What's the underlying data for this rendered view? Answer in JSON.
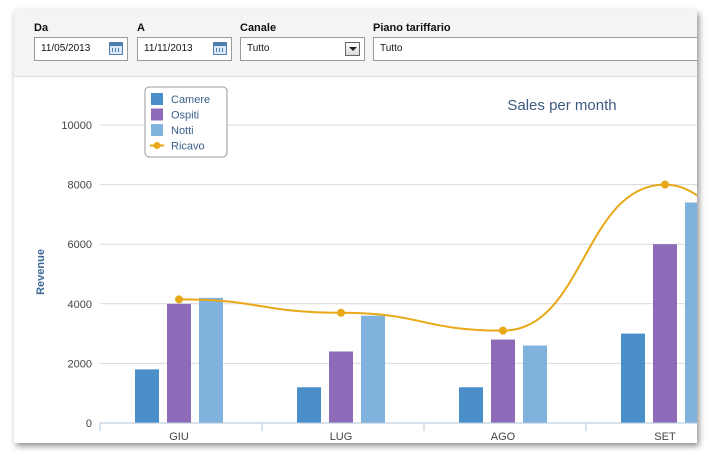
{
  "filters": {
    "da": {
      "label": "Da",
      "value": "11/05/2013",
      "icon": "calendar-icon"
    },
    "a": {
      "label": "A",
      "value": "11/11/2013",
      "icon": "calendar-icon"
    },
    "canale": {
      "label": "Canale",
      "value": "Tutto",
      "icon": "dropdown-arrow-icon"
    },
    "piano": {
      "label": "Piano tariffario",
      "value": "Tutto"
    }
  },
  "chart_data": {
    "type": "bar",
    "title": "Sales per month",
    "ylabel": "Revenue",
    "xlabel": "",
    "categories": [
      "GIU",
      "LUG",
      "AGO",
      "SET"
    ],
    "ylim": [
      0,
      10000
    ],
    "yticks": [
      0,
      2000,
      4000,
      6000,
      8000,
      10000
    ],
    "grid": true,
    "legend_position": "top-left",
    "series": [
      {
        "name": "Camere",
        "type": "bar",
        "color": "#4a8fca",
        "values": [
          1800,
          1200,
          1200,
          3000
        ]
      },
      {
        "name": "Ospiti",
        "type": "bar",
        "color": "#8e6bb8",
        "values": [
          4000,
          2400,
          2800,
          6000
        ]
      },
      {
        "name": "Notti",
        "type": "bar",
        "color": "#7fb2dc",
        "values": [
          4200,
          3600,
          2600,
          7400
        ]
      },
      {
        "name": "Ricavo",
        "type": "line",
        "color": "#e8a817",
        "values": [
          4150,
          3700,
          3100,
          8000
        ]
      }
    ]
  }
}
